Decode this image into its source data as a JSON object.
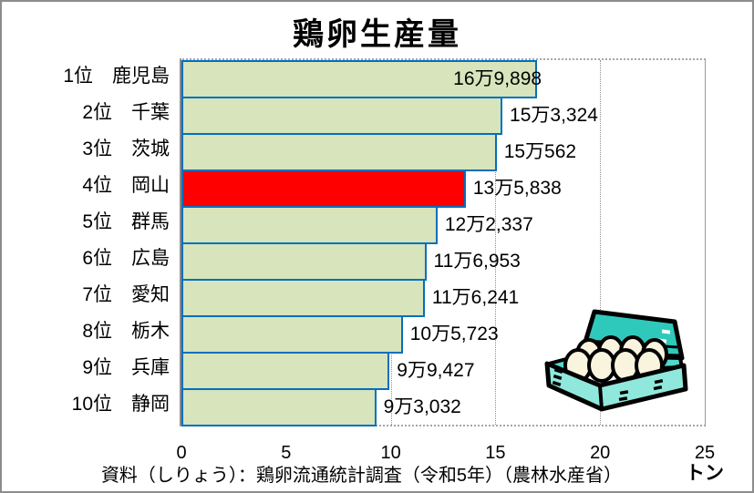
{
  "chart_data": {
    "type": "bar",
    "orientation": "horizontal",
    "title": "鶏卵生産量",
    "categories": [
      "1位　鹿児島",
      "2位　千葉",
      "3位　茨城",
      "4位　岡山",
      "5位　群馬",
      "6位　広島",
      "7位　愛知",
      "8位　栃木",
      "9位　兵庫",
      "10位　静岡"
    ],
    "values": [
      16.9898,
      15.3324,
      15.0562,
      13.5838,
      12.2337,
      11.6953,
      11.6241,
      10.5723,
      9.9427,
      9.3032
    ],
    "values_tons": [
      169898,
      153324,
      150562,
      135838,
      122337,
      116953,
      116241,
      105723,
      99427,
      93032
    ],
    "value_labels": [
      "16万9,898",
      "15万3,324",
      "15万562",
      "13万5,838",
      "12万2,337",
      "11万6,953",
      "11万6,241",
      "10万5,723",
      "9万9,427",
      "9万3,032"
    ],
    "highlight_index": 3,
    "xlim": [
      0,
      25
    ],
    "x_ticks": [
      "0",
      "5",
      "10",
      "15",
      "20",
      "25"
    ],
    "x_unit": "トン",
    "value_label_scale_note": "axis in 万トン (10,000 t units)",
    "grid": "vertical-dotted",
    "legend": "none",
    "source": "資料（しりょう）：鶏卵流通統計調査（令和5年）（農林水産省）",
    "illustration": "egg-carton-icon",
    "colors": {
      "bar_fill": "#D7E4BC",
      "highlight_fill": "#FF0000",
      "bar_border": "#0070C0",
      "gridline": "#8f8f8f",
      "axis_line": "#8a8a8a",
      "frame_border": "#8c8c8c",
      "text": "#000000"
    }
  }
}
